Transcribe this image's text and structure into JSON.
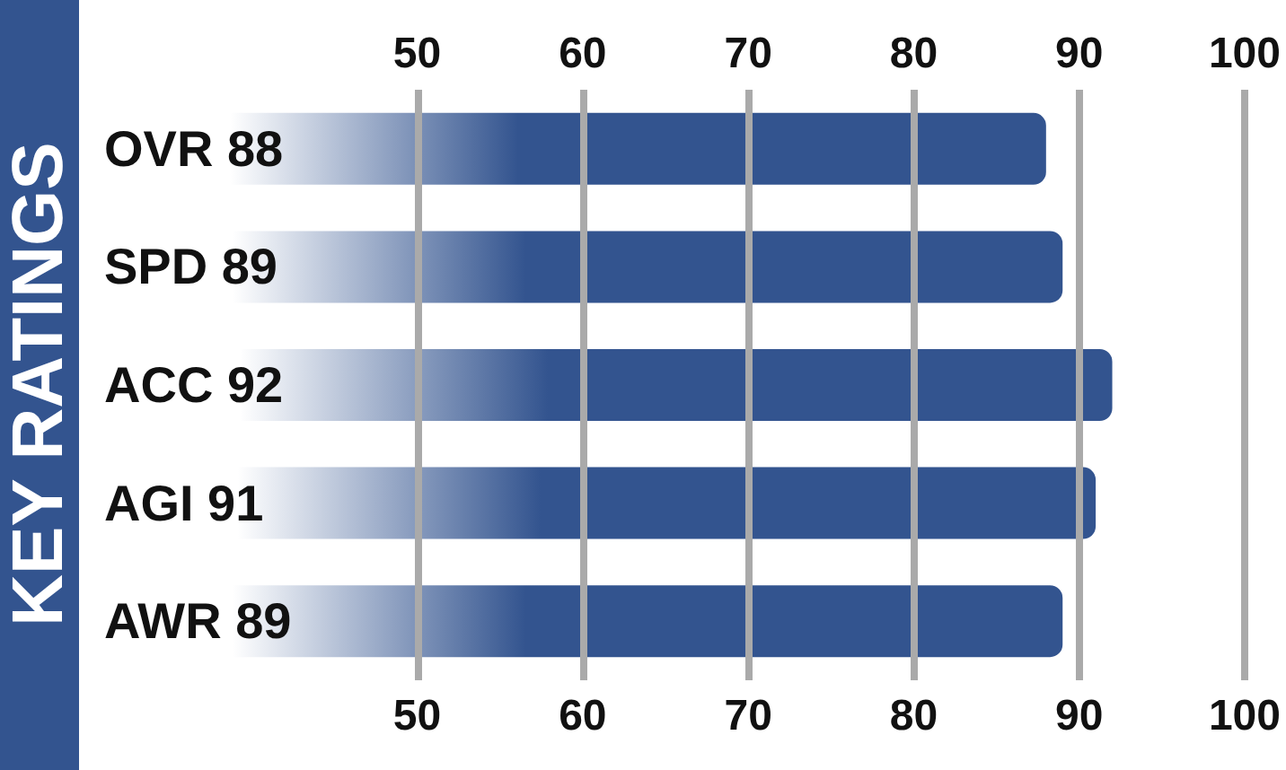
{
  "chart_data": {
    "type": "bar",
    "title": "KEY RATINGS",
    "orientation": "horizontal",
    "categories": [
      "OVR 88",
      "SPD 89",
      "ACC 92",
      "AGI 91",
      "AWR 89"
    ],
    "values": [
      88,
      89,
      92,
      91,
      89
    ],
    "color": "#33548f",
    "xlim": [
      30,
      100
    ],
    "xticks": [
      50,
      60,
      70,
      80,
      90,
      100
    ],
    "x2lim": [
      30,
      100
    ],
    "x2ticks": [
      50,
      60,
      70,
      80,
      90,
      100
    ],
    "grid": "x"
  }
}
